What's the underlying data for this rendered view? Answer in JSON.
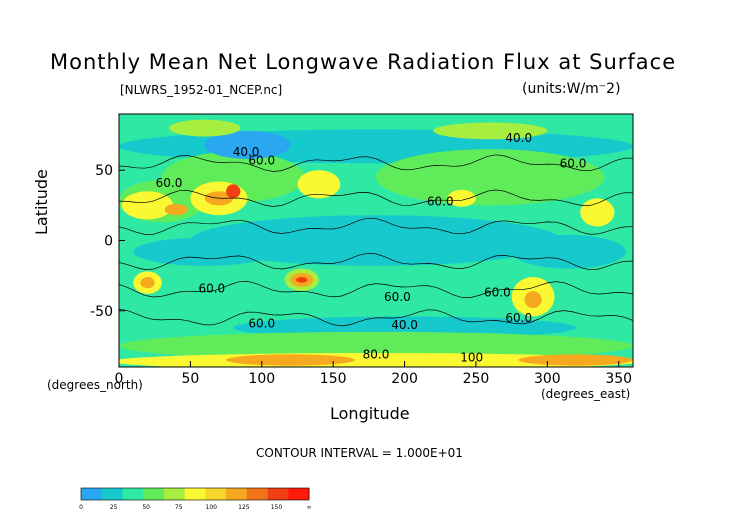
{
  "chart_data": {
    "type": "heatmap",
    "title": "Monthly Mean Net Longwave Radiation Flux at Surface",
    "subtitle_left": "[NLWRS_1952-01_NCEP.nc]",
    "subtitle_right": "(units:W/m⁻2)",
    "xlabel": "Longitude",
    "x_units": "(degrees_east)",
    "ylabel": "Latitude",
    "y_units": "(degrees_north)",
    "xlim": [
      0,
      360
    ],
    "ylim": [
      -90,
      90
    ],
    "x_ticks": [
      0,
      50,
      100,
      150,
      200,
      250,
      300,
      350
    ],
    "y_ticks": [
      50,
      0,
      -50
    ],
    "contour_interval": "CONTOUR INTERVAL = 1.000E+01",
    "contour_labels": [
      {
        "text": "40.0",
        "x": 89,
        "y": 60
      },
      {
        "text": "60.0",
        "x": 100,
        "y": 54
      },
      {
        "text": "60.0",
        "x": 35,
        "y": 38
      },
      {
        "text": "60.0",
        "x": 225,
        "y": 25
      },
      {
        "text": "40.0",
        "x": 280,
        "y": 70
      },
      {
        "text": "60.0",
        "x": 318,
        "y": 52
      },
      {
        "text": "60.0",
        "x": 65,
        "y": -37
      },
      {
        "text": "60.0",
        "x": 100,
        "y": -62
      },
      {
        "text": "60.0",
        "x": 195,
        "y": -43
      },
      {
        "text": "40.0",
        "x": 200,
        "y": -63
      },
      {
        "text": "60.0",
        "x": 265,
        "y": -40
      },
      {
        "text": "60.0",
        "x": 280,
        "y": -58
      },
      {
        "text": "80.0",
        "x": 180,
        "y": -84
      },
      {
        "text": "100",
        "x": 247,
        "y": -86
      }
    ],
    "colorbar": {
      "ticks": [
        "0",
        "25",
        "50",
        "75",
        "100",
        "125",
        "150",
        "∞"
      ],
      "colors": [
        "#29a7f0",
        "#16c9cc",
        "#2fe8a4",
        "#60ec5a",
        "#a6ee40",
        "#f9f832",
        "#f8d52a",
        "#f6a81f",
        "#f37418",
        "#f03f12",
        "#ff1a0a"
      ]
    },
    "colors": {
      "ocean": "#2fe8a4",
      "cyan": "#16c9cc",
      "blue": "#29a7f0",
      "green": "#60ec5a",
      "lightgreen": "#a6ee40",
      "yellow": "#f9f832",
      "orange": "#f6a81f",
      "red": "#f03f12"
    }
  }
}
